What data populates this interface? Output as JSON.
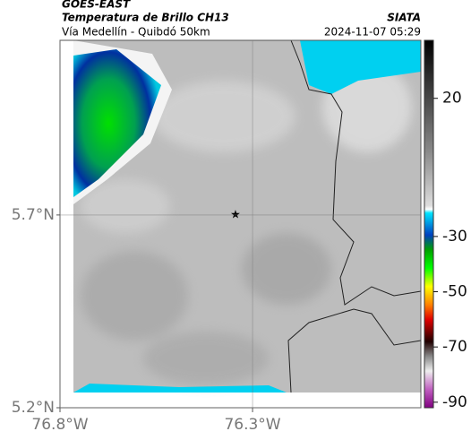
{
  "header": {
    "source": "GOES-EAST",
    "product": "Temperatura de Brillo CH13",
    "brand": "SIATA",
    "route": "Vía Medellín - Quibdó 50km",
    "timestamp": "2024-11-07 05:29"
  },
  "chart_data": {
    "type": "map",
    "xlim": [
      -76.8,
      -75.863
    ],
    "xticks": [
      {
        "value": -76.8,
        "label": "76.8°W"
      },
      {
        "value": -76.3,
        "label": "76.3°W"
      }
    ],
    "ylim": [
      5.2,
      6.153
    ],
    "yticks": [
      {
        "value": 5.7,
        "label": "5.7°N"
      },
      {
        "value": 5.2,
        "label": "5.2°N"
      }
    ],
    "grid": true,
    "colorbar": {
      "lim": [
        -92,
        41
      ],
      "ticks": [
        20,
        -30,
        -50,
        -70,
        -90
      ]
    }
  }
}
